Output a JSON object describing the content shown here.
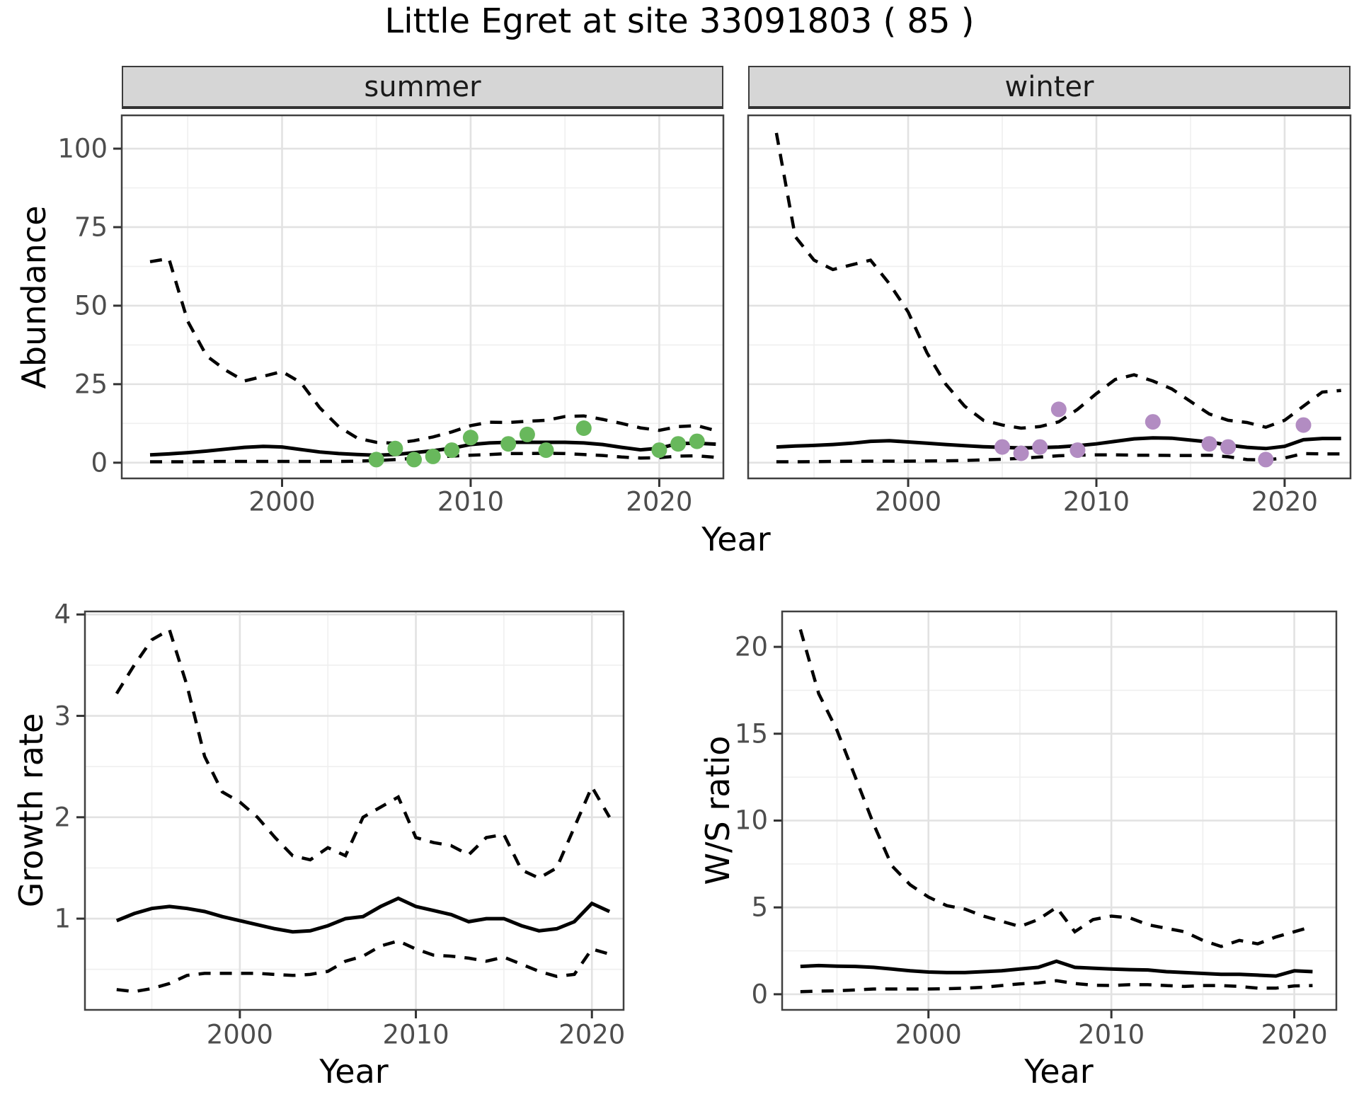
{
  "title": "Little Egret at site 33091803 ( 85 )",
  "colors": {
    "summer_points": "#68b85c",
    "winter_points": "#b28cc2",
    "line": "#000000",
    "strip_fill": "#d6d6d6",
    "grid_major": "#e2e2e2",
    "grid_minor": "#efefef",
    "tick_text": "#4d4d4d",
    "panel_border": "#404040"
  },
  "top_axis": {
    "ylabel": "Abundance",
    "xlabel": "Year"
  },
  "chart_data": [
    {
      "type": "line",
      "facet_label": "summer",
      "xlabel": "Year",
      "ylabel": "Abundance",
      "x_tick_labels": [
        "2000",
        "2010",
        "2020"
      ],
      "y_tick_labels": [
        "0",
        "25",
        "50",
        "75",
        "100"
      ],
      "x_ticks": [
        2000,
        2010,
        2020
      ],
      "y_ticks": [
        0,
        25,
        50,
        75,
        100
      ],
      "x_minor": [
        1995,
        2005,
        2015
      ],
      "y_minor": [
        12.5,
        37.5,
        62.5,
        87.5
      ],
      "xlim": [
        1991.5,
        2023.4
      ],
      "ylim": [
        -5,
        110.6
      ],
      "series": [
        {
          "name": "upper-ci",
          "style": "dashed",
          "years": [
            1993,
            1994,
            1995,
            1996,
            1997,
            1998,
            1999,
            2000,
            2001,
            2002,
            2003,
            2004,
            2005,
            2006,
            2007,
            2008,
            2009,
            2010,
            2011,
            2012,
            2013,
            2014,
            2015,
            2016,
            2017,
            2018,
            2019,
            2020,
            2021,
            2022,
            2023
          ],
          "values": [
            64,
            65,
            45,
            34,
            29.5,
            26,
            27.5,
            29,
            25.5,
            17.5,
            11.5,
            7.8,
            6.5,
            6.2,
            7,
            8.2,
            9.8,
            11.8,
            12.9,
            12.8,
            13.2,
            13.5,
            14.7,
            14.9,
            13.8,
            12.5,
            11.1,
            10.3,
            11.5,
            11.8,
            10.2
          ]
        },
        {
          "name": "median",
          "style": "solid",
          "years": [
            1993,
            1994,
            1995,
            1996,
            1997,
            1998,
            1999,
            2000,
            2001,
            2002,
            2003,
            2004,
            2005,
            2006,
            2007,
            2008,
            2009,
            2010,
            2011,
            2012,
            2013,
            2014,
            2015,
            2016,
            2017,
            2018,
            2019,
            2020,
            2021,
            2022,
            2023
          ],
          "values": [
            2.5,
            2.8,
            3.2,
            3.7,
            4.3,
            4.9,
            5.2,
            5.0,
            4.2,
            3.4,
            2.9,
            2.6,
            2.4,
            2.6,
            3.2,
            3.8,
            4.6,
            5.8,
            6.3,
            6.5,
            6.5,
            6.5,
            6.5,
            6.3,
            5.8,
            4.9,
            4.1,
            4.6,
            6.1,
            6.2,
            5.9
          ]
        },
        {
          "name": "lower-ci",
          "style": "dashed",
          "years": [
            1993,
            1994,
            1995,
            1996,
            1997,
            1998,
            1999,
            2000,
            2001,
            2002,
            2003,
            2004,
            2005,
            2006,
            2007,
            2008,
            2009,
            2010,
            2011,
            2012,
            2013,
            2014,
            2015,
            2016,
            2017,
            2018,
            2019,
            2020,
            2021,
            2022,
            2023
          ],
          "values": [
            0.3,
            0.3,
            0.3,
            0.35,
            0.4,
            0.4,
            0.4,
            0.4,
            0.4,
            0.4,
            0.4,
            0.5,
            0.7,
            1.0,
            1.4,
            1.7,
            2.1,
            2.4,
            2.6,
            2.9,
            2.9,
            3.0,
            2.9,
            2.6,
            2.3,
            1.8,
            1.5,
            1.6,
            2.1,
            2.2,
            1.7
          ]
        }
      ],
      "points": {
        "color_key": "summer_points",
        "years": [
          2005,
          2006,
          2007,
          2008,
          2009,
          2010,
          2012,
          2013,
          2014,
          2016,
          2020,
          2021,
          2022
        ],
        "values": [
          1,
          4.5,
          1,
          2,
          4,
          8,
          6,
          9,
          4,
          11,
          4,
          6,
          6.8
        ]
      }
    },
    {
      "type": "line",
      "facet_label": "winter",
      "xlabel": "Year",
      "ylabel": "Abundance",
      "x_tick_labels": [
        "2000",
        "2010",
        "2020"
      ],
      "y_tick_labels": [],
      "x_ticks": [
        2000,
        2010,
        2020
      ],
      "y_ticks": [
        0,
        25,
        50,
        75,
        100
      ],
      "x_minor": [
        1995,
        2005,
        2015
      ],
      "y_minor": [
        12.5,
        37.5,
        62.5,
        87.5
      ],
      "xlim": [
        1991.5,
        2023.5
      ],
      "ylim": [
        -5,
        110.6
      ],
      "series": [
        {
          "name": "upper-ci",
          "style": "dashed",
          "years": [
            1993,
            1994,
            1995,
            1996,
            1997,
            1998,
            1999,
            2000,
            2001,
            2002,
            2003,
            2004,
            2005,
            2006,
            2007,
            2008,
            2009,
            2010,
            2011,
            2012,
            2013,
            2014,
            2015,
            2016,
            2017,
            2018,
            2019,
            2020,
            2021,
            2022,
            2023
          ],
          "values": [
            105,
            72,
            64.5,
            61.5,
            63,
            64.5,
            57,
            48,
            35,
            25,
            18,
            13.5,
            12,
            11,
            11.5,
            13,
            17,
            22,
            26.5,
            28,
            26,
            23.5,
            19.5,
            15.5,
            13.5,
            12.8,
            11.3,
            13.5,
            18,
            22.5,
            23
          ]
        },
        {
          "name": "median",
          "style": "solid",
          "years": [
            1993,
            1994,
            1995,
            1996,
            1997,
            1998,
            1999,
            2000,
            2001,
            2002,
            2003,
            2004,
            2005,
            2006,
            2007,
            2008,
            2009,
            2010,
            2011,
            2012,
            2013,
            2014,
            2015,
            2016,
            2017,
            2018,
            2019,
            2020,
            2021,
            2022,
            2023
          ],
          "values": [
            5,
            5.3,
            5.5,
            5.8,
            6.2,
            6.8,
            7.0,
            6.6,
            6.2,
            5.8,
            5.4,
            5.1,
            4.9,
            4.7,
            4.8,
            5.0,
            5.4,
            6.0,
            6.8,
            7.6,
            7.9,
            7.8,
            7.2,
            6.6,
            5.6,
            4.9,
            4.5,
            5.2,
            7.3,
            7.7,
            7.7
          ]
        },
        {
          "name": "lower-ci",
          "style": "dashed",
          "years": [
            1993,
            1994,
            1995,
            1996,
            1997,
            1998,
            1999,
            2000,
            2001,
            2002,
            2003,
            2004,
            2005,
            2006,
            2007,
            2008,
            2009,
            2010,
            2011,
            2012,
            2013,
            2014,
            2015,
            2016,
            2017,
            2018,
            2019,
            2020,
            2021,
            2022,
            2023
          ],
          "values": [
            0.3,
            0.3,
            0.35,
            0.4,
            0.45,
            0.5,
            0.5,
            0.5,
            0.55,
            0.6,
            0.7,
            0.9,
            1.1,
            1.4,
            1.8,
            2.2,
            2.4,
            2.5,
            2.5,
            2.4,
            2.4,
            2.3,
            2.3,
            2.4,
            1.9,
            1.0,
            0.9,
            1.5,
            2.9,
            2.8,
            2.8
          ]
        }
      ],
      "points": {
        "color_key": "winter_points",
        "years": [
          2005,
          2006,
          2007,
          2008,
          2009,
          2013,
          2016,
          2017,
          2019,
          2021
        ],
        "values": [
          5,
          3,
          5,
          17,
          4,
          13,
          6,
          5,
          1,
          12
        ]
      }
    },
    {
      "type": "line",
      "facet_label": null,
      "xlabel": "Year",
      "ylabel": "Growth rate",
      "x_tick_labels": [
        "2000",
        "2010",
        "2020"
      ],
      "y_tick_labels": [
        "1",
        "2",
        "3",
        "4"
      ],
      "x_ticks": [
        2000,
        2010,
        2020
      ],
      "y_ticks": [
        1,
        2,
        3,
        4
      ],
      "x_minor": [
        1995,
        2005,
        2015
      ],
      "y_minor": [
        0.5,
        1.5,
        2.5,
        3.5
      ],
      "xlim": [
        1991.2,
        2021.8
      ],
      "ylim": [
        0.1,
        4.03
      ],
      "series": [
        {
          "name": "upper-ci",
          "style": "dashed",
          "years": [
            1993,
            1994,
            1995,
            1996,
            1997,
            1998,
            1999,
            2000,
            2001,
            2002,
            2003,
            2004,
            2005,
            2006,
            2007,
            2008,
            2009,
            2010,
            2011,
            2012,
            2013,
            2014,
            2015,
            2016,
            2017,
            2018,
            2019,
            2020,
            2021
          ],
          "values": [
            3.22,
            3.5,
            3.75,
            3.85,
            3.3,
            2.6,
            2.25,
            2.15,
            2.0,
            1.8,
            1.62,
            1.58,
            1.7,
            1.62,
            2.0,
            2.1,
            2.2,
            1.8,
            1.75,
            1.72,
            1.63,
            1.8,
            1.83,
            1.48,
            1.4,
            1.5,
            1.9,
            2.3,
            2.0
          ]
        },
        {
          "name": "median",
          "style": "solid",
          "years": [
            1993,
            1994,
            1995,
            1996,
            1997,
            1998,
            1999,
            2000,
            2001,
            2002,
            2003,
            2004,
            2005,
            2006,
            2007,
            2008,
            2009,
            2010,
            2011,
            2012,
            2013,
            2014,
            2015,
            2016,
            2017,
            2018,
            2019,
            2020,
            2021
          ],
          "values": [
            0.98,
            1.05,
            1.1,
            1.12,
            1.1,
            1.07,
            1.02,
            0.98,
            0.94,
            0.9,
            0.87,
            0.88,
            0.93,
            1.0,
            1.02,
            1.12,
            1.2,
            1.12,
            1.08,
            1.04,
            0.97,
            1.0,
            1.0,
            0.93,
            0.88,
            0.9,
            0.97,
            1.15,
            1.07
          ]
        },
        {
          "name": "lower-ci",
          "style": "dashed",
          "years": [
            1993,
            1994,
            1995,
            1996,
            1997,
            1998,
            1999,
            2000,
            2001,
            2002,
            2003,
            2004,
            2005,
            2006,
            2007,
            2008,
            2009,
            2010,
            2011,
            2012,
            2013,
            2014,
            2015,
            2016,
            2017,
            2018,
            2019,
            2020,
            2021
          ],
          "values": [
            0.3,
            0.28,
            0.31,
            0.36,
            0.44,
            0.46,
            0.46,
            0.46,
            0.46,
            0.45,
            0.44,
            0.45,
            0.48,
            0.58,
            0.63,
            0.73,
            0.78,
            0.7,
            0.64,
            0.63,
            0.61,
            0.58,
            0.62,
            0.55,
            0.48,
            0.43,
            0.45,
            0.7,
            0.65
          ]
        }
      ],
      "points": null
    },
    {
      "type": "line",
      "facet_label": null,
      "xlabel": "Year",
      "ylabel": "W/S ratio",
      "x_tick_labels": [
        "2000",
        "2010",
        "2020"
      ],
      "y_tick_labels": [
        "0",
        "5",
        "10",
        "15",
        "20"
      ],
      "x_ticks": [
        2000,
        2010,
        2020
      ],
      "y_ticks": [
        0,
        5,
        10,
        15,
        20
      ],
      "x_minor": [
        1995,
        2005,
        2015
      ],
      "y_minor": [
        2.5,
        7.5,
        12.5,
        17.5
      ],
      "xlim": [
        1992.0,
        2022.3
      ],
      "ylim": [
        -0.9,
        22.04
      ],
      "series": [
        {
          "name": "upper-ci",
          "style": "dashed",
          "years": [
            1993,
            1994,
            1995,
            1996,
            1997,
            1998,
            1999,
            2000,
            2001,
            2002,
            2003,
            2004,
            2005,
            2006,
            2007,
            2008,
            2009,
            2010,
            2011,
            2012,
            2013,
            2014,
            2015,
            2016,
            2017,
            2018,
            2019,
            2020,
            2021
          ],
          "values": [
            21,
            17.3,
            15.2,
            12.5,
            9.8,
            7.4,
            6.3,
            5.6,
            5.1,
            4.9,
            4.5,
            4.2,
            3.9,
            4.3,
            5.0,
            3.6,
            4.3,
            4.5,
            4.4,
            4.0,
            3.8,
            3.6,
            3.1,
            2.75,
            3.1,
            2.9,
            3.3,
            3.6,
            3.9
          ]
        },
        {
          "name": "median",
          "style": "solid",
          "years": [
            1993,
            1994,
            1995,
            1996,
            1997,
            1998,
            1999,
            2000,
            2001,
            2002,
            2003,
            2004,
            2005,
            2006,
            2007,
            2008,
            2009,
            2010,
            2011,
            2012,
            2013,
            2014,
            2015,
            2016,
            2017,
            2018,
            2019,
            2020,
            2021
          ],
          "values": [
            1.6,
            1.65,
            1.62,
            1.6,
            1.55,
            1.45,
            1.35,
            1.28,
            1.25,
            1.25,
            1.3,
            1.35,
            1.45,
            1.55,
            1.9,
            1.55,
            1.5,
            1.45,
            1.42,
            1.4,
            1.3,
            1.25,
            1.2,
            1.15,
            1.15,
            1.1,
            1.05,
            1.35,
            1.3
          ]
        },
        {
          "name": "lower-ci",
          "style": "dashed",
          "years": [
            1993,
            1994,
            1995,
            1996,
            1997,
            1998,
            1999,
            2000,
            2001,
            2002,
            2003,
            2004,
            2005,
            2006,
            2007,
            2008,
            2009,
            2010,
            2011,
            2012,
            2013,
            2014,
            2015,
            2016,
            2017,
            2018,
            2019,
            2020,
            2021
          ],
          "values": [
            0.15,
            0.18,
            0.2,
            0.25,
            0.3,
            0.3,
            0.3,
            0.3,
            0.32,
            0.35,
            0.4,
            0.5,
            0.6,
            0.65,
            0.78,
            0.62,
            0.52,
            0.5,
            0.55,
            0.55,
            0.5,
            0.45,
            0.5,
            0.5,
            0.45,
            0.35,
            0.35,
            0.48,
            0.5
          ]
        }
      ],
      "points": null
    }
  ]
}
